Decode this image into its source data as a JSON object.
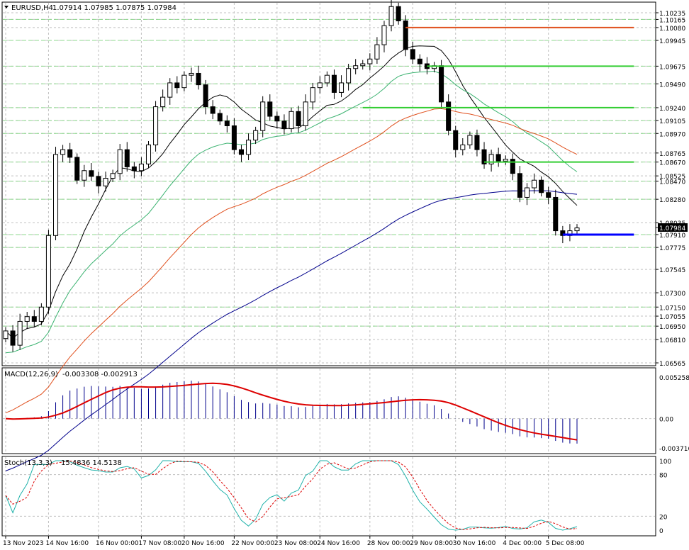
{
  "header": {
    "symbol": "EURUSD,H4",
    "ohlc": "1.07914 1.07985 1.07875 1.07984"
  },
  "colors": {
    "background": "#ffffff",
    "grid": "#c0c0c0",
    "level_grid": "#8fd88f",
    "candle": "#000000",
    "ma_fast": "#000000",
    "ma_mid": "#3cb371",
    "ma_slow": "#e0501e",
    "ma_long": "#00008b",
    "resistance": "#e0501e",
    "support_levels": "#32cd32",
    "current_level": "#0000ff",
    "macd_hist": "#00008b",
    "macd_signal": "#dd0000",
    "stoch_main": "#20b2aa",
    "stoch_signal": "#dd0000"
  },
  "chart_data": [
    {
      "type": "candlestick",
      "title": "EURUSD,H4",
      "ohlc_readout": "1.07914 1.07985 1.07875 1.07984",
      "ylim": [
        1.06565,
        1.10235
      ],
      "price_axis_labels": [
        {
          "v": 1.10235,
          "t": "1.10235"
        },
        {
          "v": 1.10165,
          "t": "1.10165"
        },
        {
          "v": 1.1008,
          "t": "1.10080"
        },
        {
          "v": 1.09945,
          "t": "1.09945"
        },
        {
          "v": 1.09675,
          "t": "1.09675"
        },
        {
          "v": 1.0949,
          "t": "1.09490"
        },
        {
          "v": 1.0924,
          "t": "1.09240"
        },
        {
          "v": 1.09105,
          "t": "1.09105"
        },
        {
          "v": 1.0897,
          "t": "1.08970"
        },
        {
          "v": 1.08765,
          "t": "1.08765"
        },
        {
          "v": 1.0867,
          "t": "1.08670"
        },
        {
          "v": 1.08525,
          "t": "1.08525"
        },
        {
          "v": 1.0847,
          "t": "1.08470"
        },
        {
          "v": 1.0828,
          "t": "1.08280"
        },
        {
          "v": 1.08035,
          "t": "1.08035"
        },
        {
          "v": 1.07984,
          "t": "1.07984",
          "current": true
        },
        {
          "v": 1.0791,
          "t": "1.07910"
        },
        {
          "v": 1.07775,
          "t": "1.07775"
        },
        {
          "v": 1.07545,
          "t": "1.07545"
        },
        {
          "v": 1.073,
          "t": "1.07300"
        },
        {
          "v": 1.0715,
          "t": "1.07150"
        },
        {
          "v": 1.07055,
          "t": "1.07055"
        },
        {
          "v": 1.0695,
          "t": "1.06950"
        },
        {
          "v": 1.0681,
          "t": "1.06810"
        },
        {
          "v": 1.06565,
          "t": "1.06565"
        }
      ],
      "level_lines": [
        1.10165,
        1.09945,
        1.09675,
        1.0949,
        1.0924,
        1.09105,
        1.0897,
        1.0867,
        1.0847,
        1.0828,
        1.0791,
        1.07775,
        1.0715,
        1.0695
      ],
      "horizontal_levels": [
        {
          "name": "resistance",
          "price": 1.1008,
          "from_bar": 56,
          "to_bar": 84,
          "color": "#e0501e"
        },
        {
          "name": "level-1",
          "price": 1.09675,
          "from_bar": 59,
          "to_bar": 84,
          "color": "#32cd32"
        },
        {
          "name": "level-2",
          "price": 1.0924,
          "from_bar": 50,
          "to_bar": 84,
          "color": "#32cd32"
        },
        {
          "name": "level-3",
          "price": 1.0867,
          "from_bar": 67,
          "to_bar": 84,
          "color": "#32cd32"
        },
        {
          "name": "level-4",
          "price": 1.0791,
          "from_bar": 78,
          "to_bar": 84,
          "color": "#0000ff"
        }
      ],
      "x_labels": [
        {
          "bar": 0,
          "t": "13 Nov 2023"
        },
        {
          "bar": 6,
          "t": "14 Nov 16:00"
        },
        {
          "bar": 13,
          "t": "16 Nov 00:00"
        },
        {
          "bar": 19,
          "t": "17 Nov 08:00"
        },
        {
          "bar": 25,
          "t": "20 Nov 16:00"
        },
        {
          "bar": 32,
          "t": "22 Nov 00:00"
        },
        {
          "bar": 38,
          "t": "23 Nov 08:00"
        },
        {
          "bar": 44,
          "t": "24 Nov 16:00"
        },
        {
          "bar": 51,
          "t": "28 Nov 00:00"
        },
        {
          "bar": 57,
          "t": "29 Nov 08:00"
        },
        {
          "bar": 63,
          "t": "30 Nov 16:00"
        },
        {
          "bar": 70,
          "t": "4 Dec 00:00"
        },
        {
          "bar": 76,
          "t": "5 Dec 08:00"
        }
      ],
      "close": [
        1.069,
        1.0675,
        1.07,
        1.0705,
        1.07,
        1.0715,
        1.079,
        1.0875,
        1.088,
        1.0872,
        1.0848,
        1.0858,
        1.0852,
        1.0842,
        1.085,
        1.0855,
        1.088,
        1.0862,
        1.0858,
        1.0865,
        1.0885,
        1.0925,
        1.0935,
        1.095,
        1.0945,
        1.0958,
        1.096,
        1.0948,
        1.0925,
        1.0918,
        1.091,
        1.0905,
        1.088,
        1.0875,
        1.089,
        1.09,
        1.093,
        1.0915,
        1.091,
        1.0902,
        1.092,
        1.0905,
        1.093,
        1.0945,
        1.095,
        1.0958,
        1.094,
        1.095,
        1.0965,
        1.0968,
        1.097,
        1.0975,
        1.099,
        1.101,
        1.103,
        1.1015,
        1.0985,
        1.0975,
        1.097,
        1.0965,
        1.0968,
        1.093,
        1.09,
        1.088,
        1.0885,
        1.0895,
        1.088,
        1.0865,
        1.0875,
        1.0868,
        1.087,
        1.0855,
        1.083,
        1.084,
        1.0848,
        1.0835,
        1.083,
        1.0795,
        1.079,
        1.0795,
        1.0798
      ]
    },
    {
      "type": "histogram",
      "title": "MACD(12,26,9)",
      "readout": "-0.003308 -0.002913",
      "y_labels": [
        {
          "v": 0.005258,
          "t": "0.005258"
        },
        {
          "v": 0.0,
          "t": "0.00"
        },
        {
          "v": -0.003716,
          "t": "-0.003716"
        }
      ],
      "ylim": [
        -0.003716,
        0.005258
      ]
    },
    {
      "type": "line",
      "title": "Stoch(13,3,3)",
      "readout": "15.4836 14.5138",
      "ylim": [
        0,
        100
      ],
      "y_labels": [
        {
          "v": 100,
          "t": "100"
        },
        {
          "v": 80,
          "t": "80"
        },
        {
          "v": 20,
          "t": "20"
        },
        {
          "v": 0,
          "t": "0"
        }
      ]
    }
  ]
}
